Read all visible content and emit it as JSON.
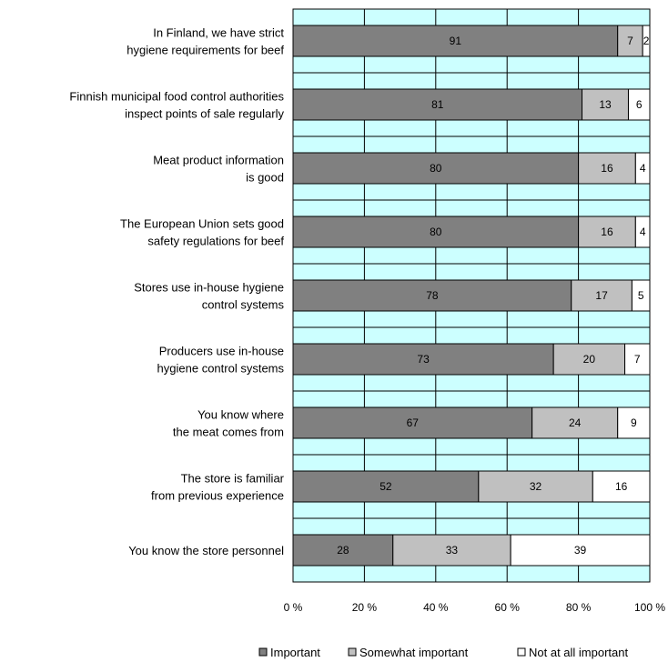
{
  "chart_data": {
    "type": "bar",
    "orientation": "horizontal",
    "stacked": true,
    "percent_stacked": true,
    "categories": [
      [
        "In Finland, we have strict",
        "hygiene requirements for beef"
      ],
      [
        "Finnish municipal food control authorities",
        "inspect points of sale regularly"
      ],
      [
        "Meat product information",
        "is good"
      ],
      [
        "The European Union sets good",
        "safety regulations for beef"
      ],
      [
        "Stores use in-house hygiene",
        "control systems"
      ],
      [
        "Producers use in-house",
        "hygiene control systems"
      ],
      [
        "You know where",
        "the meat comes from"
      ],
      [
        "The store is familiar",
        "from previous experience"
      ],
      [
        "You know the store personnel"
      ]
    ],
    "series": [
      {
        "name": "Important",
        "color": "#808080",
        "values": [
          91,
          81,
          80,
          80,
          78,
          73,
          67,
          52,
          28
        ]
      },
      {
        "name": "Somewhat important",
        "color": "#c0c0c0",
        "values": [
          7,
          13,
          16,
          16,
          17,
          20,
          24,
          32,
          33
        ]
      },
      {
        "name": "Not at all important",
        "color": "#ffffff",
        "values": [
          2,
          6,
          4,
          4,
          5,
          7,
          9,
          16,
          39
        ]
      }
    ],
    "x_ticks": [
      "0 %",
      "20 %",
      "40 %",
      "60 %",
      "80 %",
      "100 %"
    ],
    "xlim": [
      0,
      100
    ],
    "plot_background": "#ccffff",
    "grid": true,
    "legend": "bottom"
  }
}
